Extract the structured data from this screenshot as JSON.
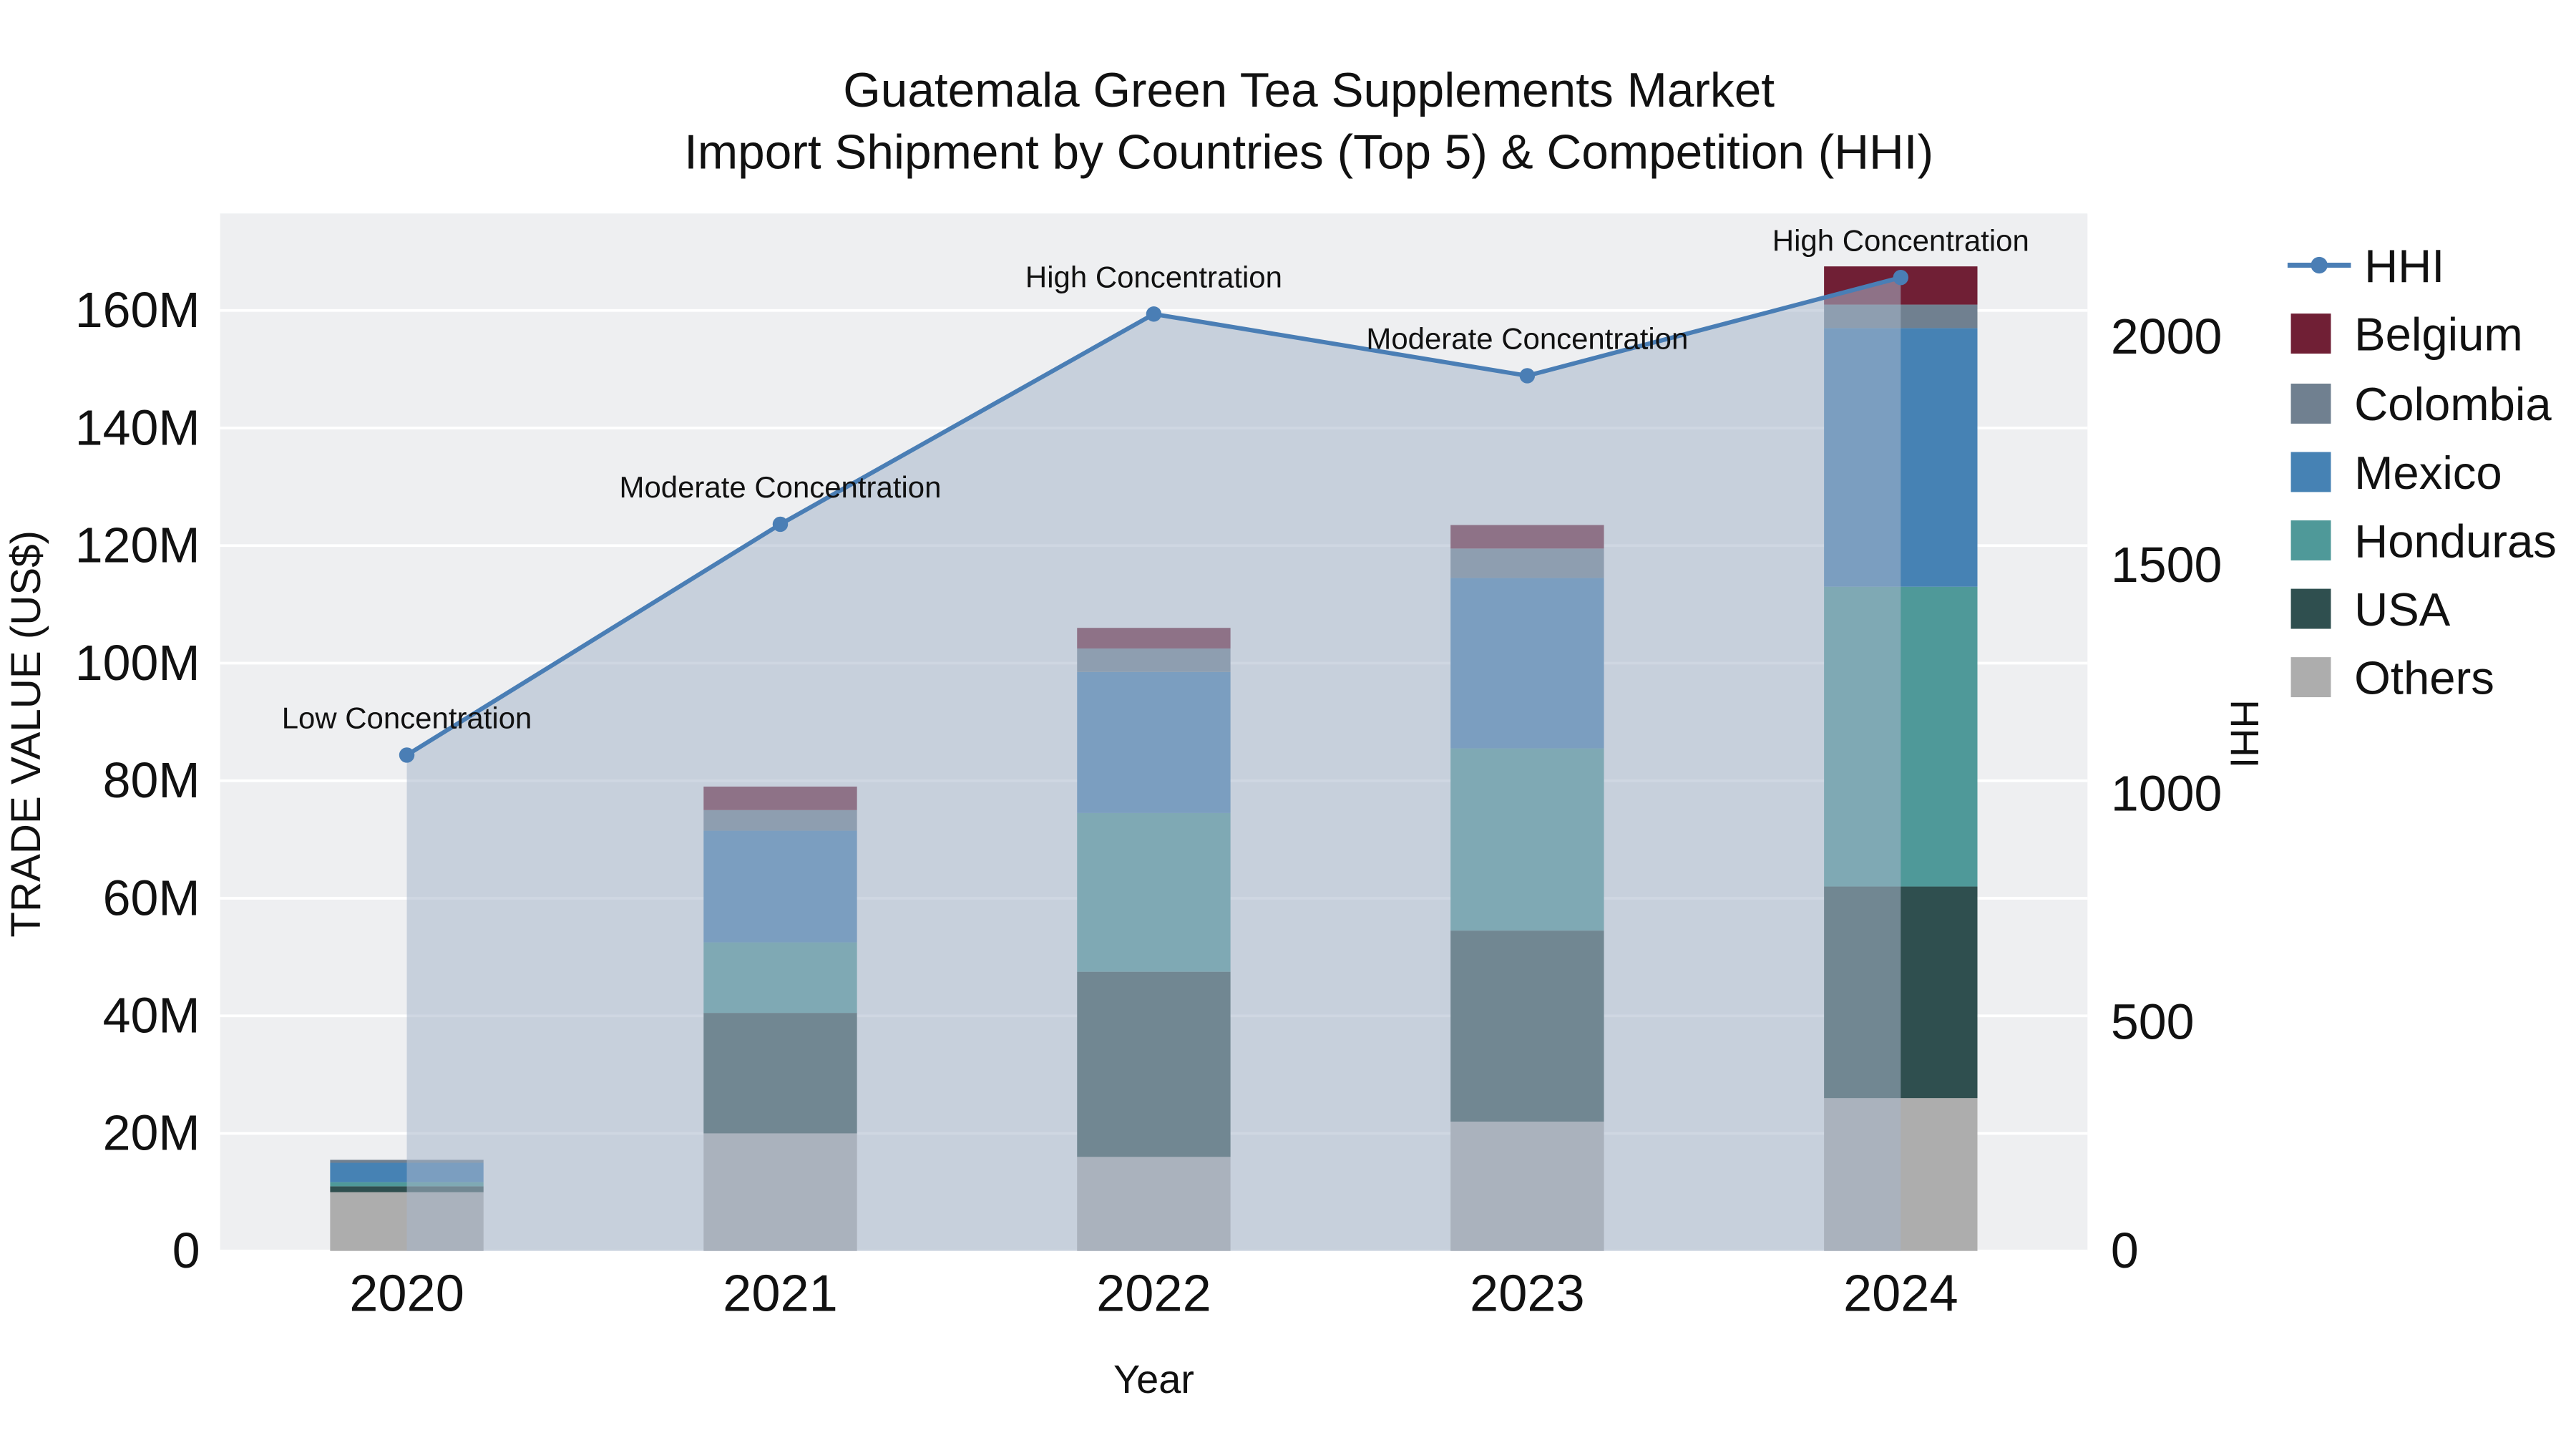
{
  "title": {
    "line1": "Guatemala Green Tea Supplements Market",
    "line2": "Import Shipment by Countries (Top 5) & Competition (HHI)"
  },
  "axes": {
    "y_left_label": "TRADE VALUE (US$)",
    "y_right_label": "HHI",
    "x_label": "Year",
    "y_left_ticks": [
      "0",
      "20M",
      "40M",
      "60M",
      "80M",
      "100M",
      "120M",
      "140M",
      "160M"
    ],
    "y_left_tick_values": [
      0,
      20,
      40,
      60,
      80,
      100,
      120,
      140,
      160
    ],
    "y_left_max": 176.5,
    "y_right_ticks": [
      "0",
      "500",
      "1000",
      "1500",
      "2000"
    ],
    "y_right_tick_values": [
      0,
      500,
      1000,
      1500,
      2000
    ],
    "y_right_max": 2270
  },
  "colors": {
    "plot_background": "#eeeff1",
    "gridline": "#ffffff",
    "area_fill": "rgba(168,182,202,0.55)",
    "text": "#111111"
  },
  "chart_data": {
    "type": "bar",
    "subtype": "stacked-bar-with-line",
    "title": "Guatemala Green Tea Supplements Market — Import Shipment by Countries (Top 5) & Competition (HHI)",
    "xlabel": "Year",
    "ylabel_left": "TRADE VALUE (US$)",
    "ylabel_right": "HHI",
    "ylim_left_millions": [
      0,
      176.5
    ],
    "ylim_right": [
      0,
      2270
    ],
    "grid": true,
    "legend_position": "right",
    "categories": [
      "2020",
      "2021",
      "2022",
      "2023",
      "2024"
    ],
    "bar_unit": "million US$",
    "bar_series": [
      {
        "name": "Others",
        "color": "#adadad",
        "values": [
          10,
          20,
          16,
          22,
          26
        ]
      },
      {
        "name": "USA",
        "color": "#2f4f4f",
        "values": [
          1,
          20.5,
          31.5,
          32.5,
          36
        ]
      },
      {
        "name": "Honduras",
        "color": "#4f9999",
        "values": [
          0.7,
          12,
          27,
          31,
          51
        ]
      },
      {
        "name": "Mexico",
        "color": "#4682b4",
        "values": [
          3.3,
          19,
          24,
          29,
          44
        ]
      },
      {
        "name": "Colombia",
        "color": "#708090",
        "values": [
          0.5,
          3.5,
          4,
          5,
          4
        ]
      },
      {
        "name": "Belgium",
        "color": "#701f35",
        "values": [
          0,
          4,
          3.5,
          4,
          6.5
        ]
      }
    ],
    "bar_totals_millions": [
      15.5,
      79,
      106,
      123.5,
      167.5
    ],
    "line_series": {
      "name": "HHI",
      "color": "#4a7eb5",
      "area_fill": "rgba(168,182,202,0.55)",
      "values": [
        1085,
        1590,
        2050,
        1915,
        2130
      ]
    },
    "annotations": [
      "Low Concentration",
      "Moderate Concentration",
      "High Concentration",
      "Moderate Concentration",
      "High Concentration"
    ]
  }
}
